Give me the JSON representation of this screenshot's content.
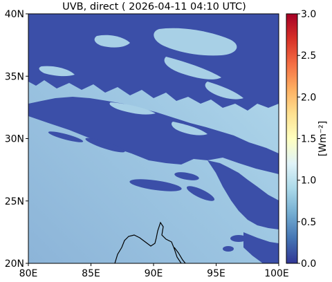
{
  "title": "UVB, direct ( 2026-04-11 04:10 UTC)",
  "map": {
    "lon_ticks": [
      "80E",
      "85E",
      "90E",
      "95E",
      "100E"
    ],
    "lat_ticks": [
      "20N",
      "25N",
      "30N",
      "35N",
      "40N"
    ],
    "lon_range": [
      80,
      100
    ],
    "lat_range": [
      20,
      40
    ]
  },
  "colorbar": {
    "label": "[Wm⁻²]",
    "ticks": [
      "0.0",
      "0.5",
      "1.0",
      "1.5",
      "2.0",
      "2.5",
      "3.0"
    ],
    "range": [
      0.0,
      3.0
    ],
    "colormap": "RdYlBu_r",
    "colors": [
      "#313695",
      "#4575b4",
      "#74add1",
      "#abd9e9",
      "#e0f3f8",
      "#ffffbf",
      "#fee090",
      "#fdae61",
      "#f46d43",
      "#d73027",
      "#a50026"
    ]
  },
  "colors": {
    "low_value": "#3b4fa8",
    "background_field": "#8fb9dc",
    "coastline": "#000000"
  }
}
